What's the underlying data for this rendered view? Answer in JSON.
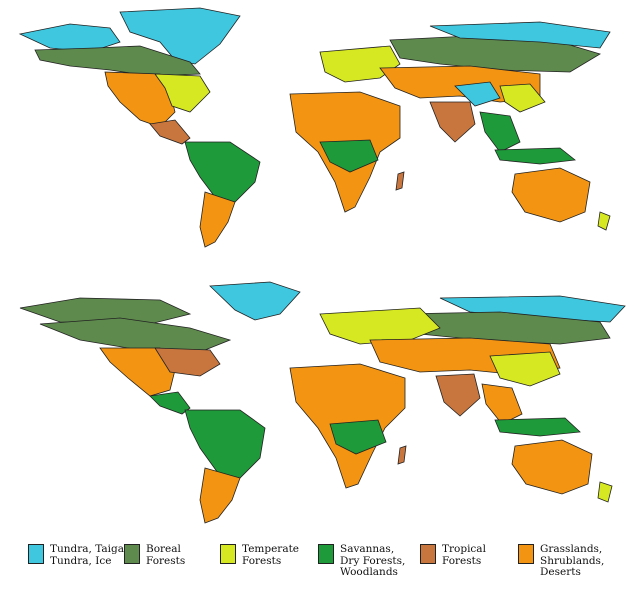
{
  "maps": [
    {
      "id": "top"
    },
    {
      "id": "bottom"
    }
  ],
  "legend": [
    {
      "key": "tundra",
      "label": "Tundra, Taiga-\nTundra, Ice",
      "color": "#3fc7e0"
    },
    {
      "key": "boreal",
      "label": "Boreal\nForests",
      "color": "#5f8a4e"
    },
    {
      "key": "temperate",
      "label": "Temperate\nForests",
      "color": "#d6e821"
    },
    {
      "key": "savanna",
      "label": "Savannas,\nDry Forests,\nWoodlands",
      "color": "#1f9a3a"
    },
    {
      "key": "tropical",
      "label": "Tropical\nForests",
      "color": "#c9763e"
    },
    {
      "key": "grassland",
      "label": "Grasslands,\nShrublands,\nDeserts",
      "color": "#f39412"
    }
  ]
}
